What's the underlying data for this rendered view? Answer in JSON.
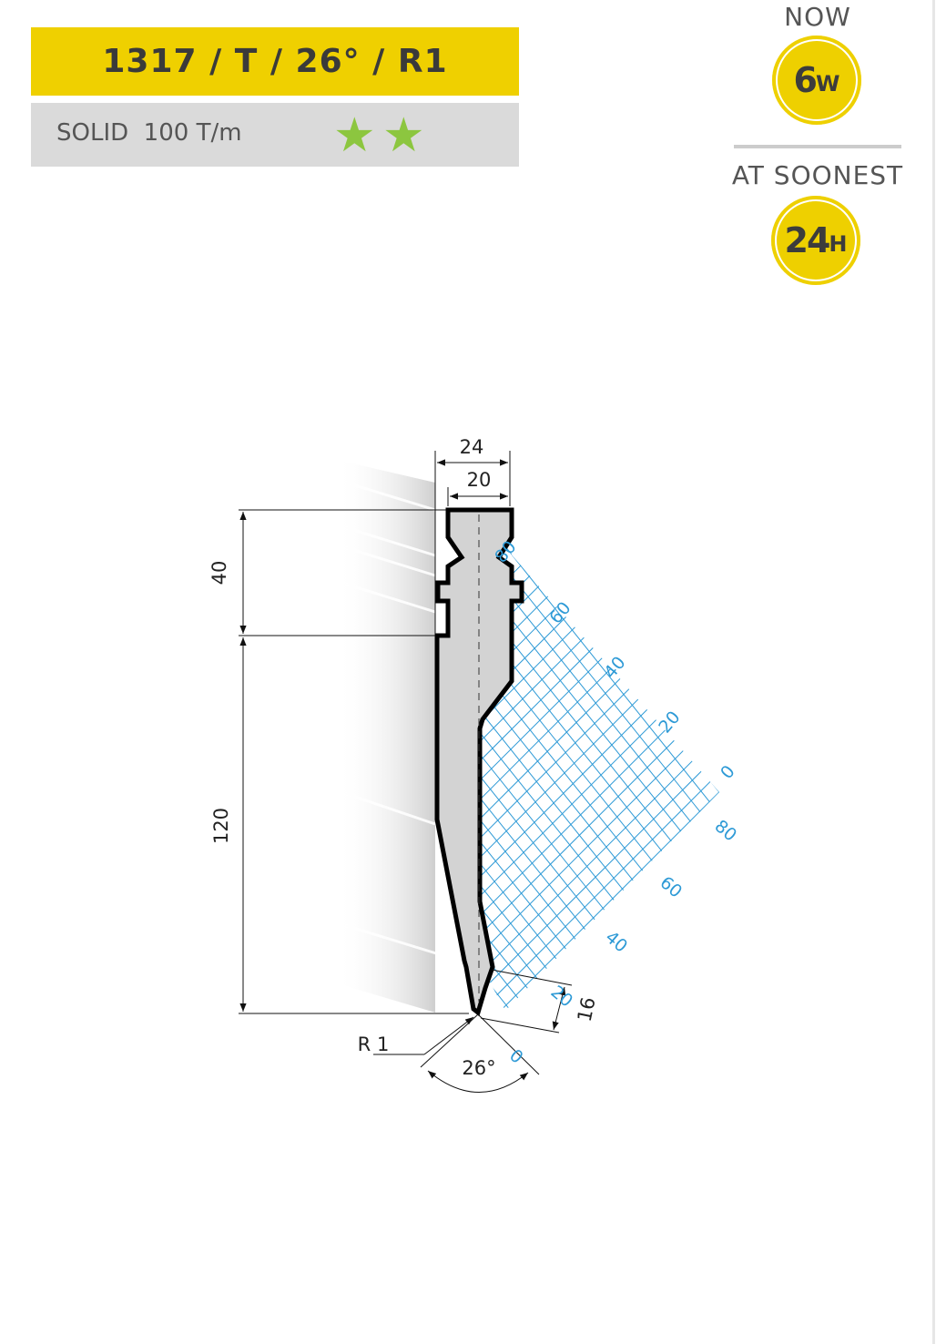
{
  "header": {
    "title": "1317 / T / 26° / R1",
    "spec": "SOLID  100 T/m",
    "rating_stars": 2,
    "star_color": "#8cc63f",
    "accent_color": "#efd000"
  },
  "availability": {
    "now_label": "NOW",
    "now_value": "6",
    "now_unit": "W",
    "soonest_label": "AT SOONEST",
    "soonest_value": "24",
    "soonest_unit": "H"
  },
  "drawing": {
    "dim_total_width": "24",
    "dim_inner_width": "20",
    "dim_upper_height": "40",
    "dim_lower_height": "120",
    "dim_radius": "R 1",
    "dim_angle": "26°",
    "dim_tip_height": "16",
    "grid_color": "#2e9ad6",
    "grid_upper_labels": [
      "80",
      "60",
      "40",
      "20",
      "0"
    ],
    "grid_lower_labels": [
      "80",
      "60",
      "40",
      "20",
      "0"
    ]
  }
}
